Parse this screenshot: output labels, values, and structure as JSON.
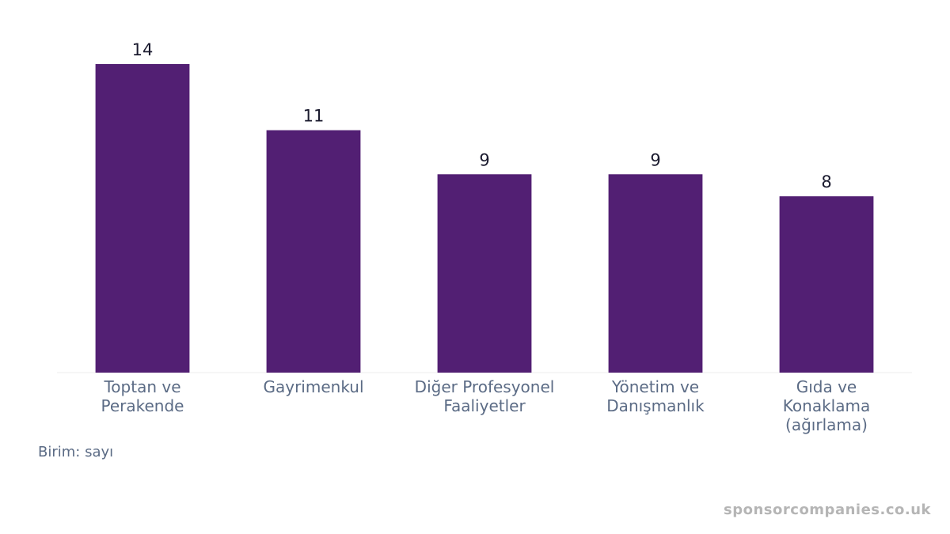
{
  "chart_data": {
    "type": "bar",
    "categories": [
      "Toptan ve\nPerakende",
      "Gayrimenkul",
      "Diğer Profesyonel\nFaaliyetler",
      "Yönetim ve\nDanışmanlık",
      "Gıda ve\nKonaklama\n(ağırlama)"
    ],
    "values": [
      14,
      11,
      9,
      9,
      8
    ],
    "color": "#521f73",
    "ylim": [
      0,
      14
    ],
    "footnote": "Birim: sayı",
    "watermark": "sponsorcompanies.co.uk"
  }
}
